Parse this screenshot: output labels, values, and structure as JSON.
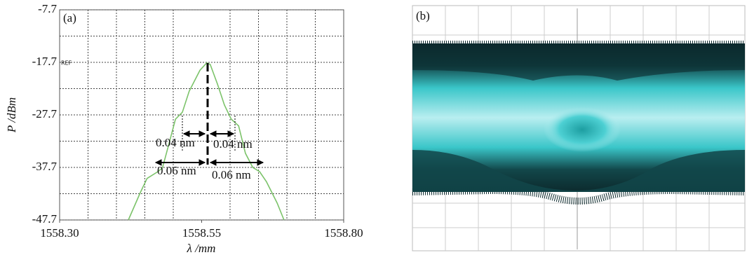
{
  "chart_data": {
    "type": "line",
    "panel_label": "(a)",
    "ref_label": "REF",
    "xlabel": "λ /mm",
    "ylabel": "P /dBm",
    "xlim": [
      1558.3,
      1558.8
    ],
    "ylim": [
      -47.7,
      -7.7
    ],
    "xticks": [
      {
        "value": 1558.3,
        "label": "1558.30"
      },
      {
        "value": 1558.55,
        "label": "1558.55"
      },
      {
        "value": 1558.8,
        "label": "1558.80"
      }
    ],
    "yticks": [
      -47.7,
      -37.7,
      -27.7,
      -17.7,
      -7.7
    ],
    "minor_xticks": [
      1558.35,
      1558.4,
      1558.45,
      1558.5,
      1558.6,
      1558.65,
      1558.7,
      1558.75
    ],
    "minor_yticks": [
      -42.7,
      -32.7,
      -22.7,
      -12.7
    ],
    "grid": true,
    "annotations": [
      "0.04 nm",
      "0.04 nm",
      "0.06 nm",
      "0.06 nm"
    ],
    "series": [
      {
        "color": "#7cc36a",
        "x": [
          1558.421,
          1558.442,
          1558.454,
          1558.473,
          1558.481,
          1558.491,
          1558.504,
          1558.516,
          1558.528,
          1558.547,
          1558.559,
          1558.565,
          1558.578,
          1558.59,
          1558.602,
          1558.615,
          1558.627,
          1558.64,
          1558.652,
          1558.664,
          1558.683,
          1558.695
        ],
        "values": [
          -47.7,
          -42.5,
          -39.8,
          -38.5,
          -37.8,
          -33.8,
          -28.5,
          -27.2,
          -23.2,
          -19.2,
          -17.8,
          -18.1,
          -21.9,
          -25.8,
          -28.5,
          -29.8,
          -35.0,
          -37.7,
          -38.5,
          -40.4,
          -44.5,
          -47.7
        ]
      }
    ]
  },
  "panel_b": {
    "label": "(b)"
  }
}
